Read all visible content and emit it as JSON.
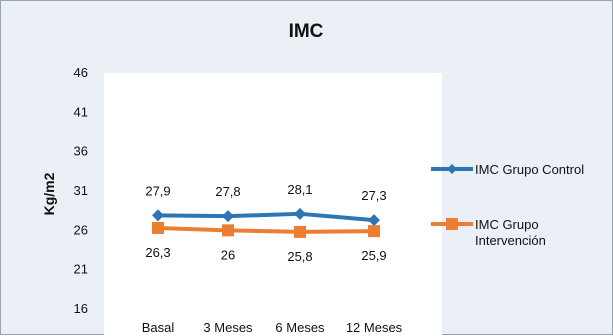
{
  "chart_data": {
    "type": "line",
    "title": "IMC",
    "xlabel": "",
    "ylabel": "Kg/m2",
    "categories": [
      "Basal",
      "3 Meses",
      "6 Meses",
      "12 Meses"
    ],
    "ylim": [
      16,
      46
    ],
    "yticks": [
      16,
      21,
      26,
      31,
      36,
      41,
      46
    ],
    "grid": false,
    "legend_position": "right",
    "series": [
      {
        "name": "IMC Grupo Control",
        "legend_lines": [
          "IMC Grupo Control"
        ],
        "values": [
          27.9,
          27.8,
          28.1,
          27.3
        ],
        "data_labels": [
          "27,9",
          "27,8",
          "28,1",
          "27,3"
        ],
        "color": "#2e75b6",
        "marker": "diamond"
      },
      {
        "name": "IMC Grupo Intervención",
        "legend_lines": [
          "IMC Grupo",
          "Intervención"
        ],
        "values": [
          26.3,
          26,
          25.8,
          25.9
        ],
        "data_labels": [
          "26,3",
          "26",
          "25,8",
          "25,9"
        ],
        "color": "#ed7d31",
        "marker": "square"
      }
    ]
  }
}
